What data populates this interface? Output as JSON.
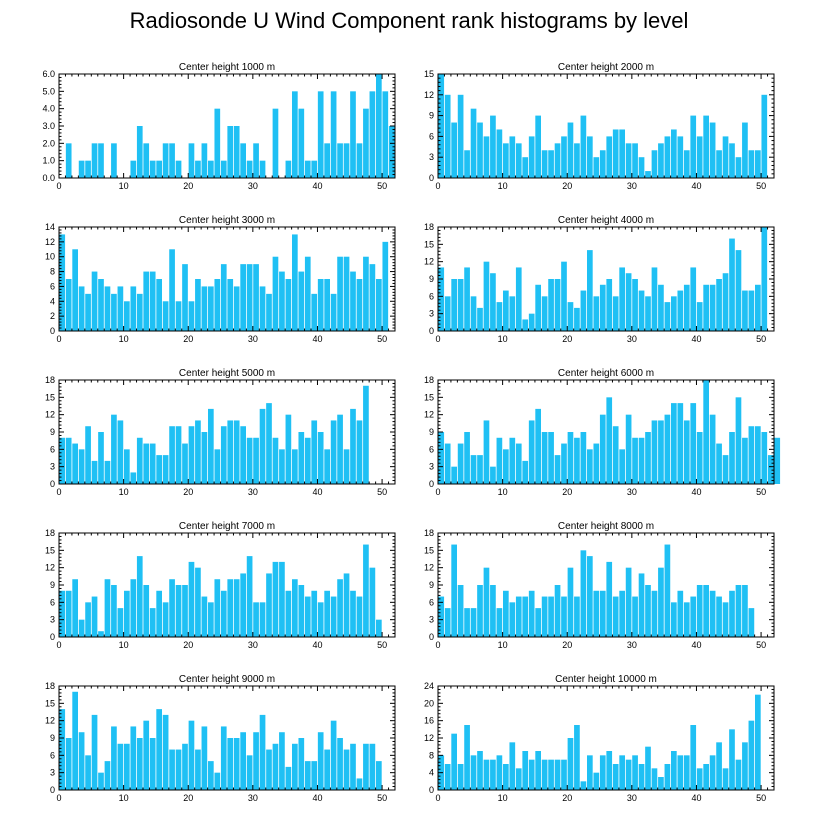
{
  "title": "Radiosonde U Wind Component rank histograms by level",
  "colors": {
    "bar": "#1fc0f4",
    "axis": "#000000"
  },
  "chart_data": [
    {
      "type": "bar",
      "title": "Center height 1000 m",
      "xlim": [
        0,
        52
      ],
      "ylim": [
        0,
        6
      ],
      "xticks": [
        0,
        10,
        20,
        30,
        40,
        50
      ],
      "yticks": [
        0,
        1,
        2,
        3,
        4,
        5,
        6
      ],
      "ytick_labels": [
        "0.0",
        "1.0",
        "2.0",
        "3.0",
        "4.0",
        "5.0",
        "6.0"
      ],
      "values": [
        0,
        2,
        0,
        1,
        1,
        2,
        2,
        0,
        2,
        0,
        0,
        1,
        3,
        2,
        1,
        1,
        2,
        2,
        1,
        0,
        2,
        1,
        2,
        1,
        4,
        1,
        3,
        3,
        2,
        1,
        2,
        1,
        0,
        4,
        0,
        1,
        5,
        4,
        1,
        1,
        5,
        2,
        5,
        2,
        2,
        5,
        2,
        4,
        5,
        6,
        5,
        3
      ]
    },
    {
      "type": "bar",
      "title": "Center height 2000 m",
      "xlim": [
        0,
        52
      ],
      "ylim": [
        0,
        15
      ],
      "xticks": [
        0,
        10,
        20,
        30,
        40,
        50
      ],
      "yticks": [
        0,
        3,
        6,
        9,
        12,
        15
      ],
      "ytick_labels": [
        "0",
        "3",
        "6",
        "9",
        "12",
        "15"
      ],
      "values": [
        15,
        12,
        8,
        12,
        4,
        10,
        8,
        6,
        9,
        7,
        5,
        6,
        5,
        3,
        6,
        9,
        4,
        4,
        5,
        6,
        8,
        5,
        9,
        6,
        3,
        4,
        6,
        7,
        7,
        5,
        5,
        3,
        1,
        4,
        5,
        6,
        7,
        6,
        4,
        9,
        6,
        9,
        8,
        4,
        6,
        5,
        3,
        8,
        4,
        4,
        12,
        0
      ]
    },
    {
      "type": "bar",
      "title": "Center height 3000 m",
      "xlim": [
        0,
        52
      ],
      "ylim": [
        0,
        14
      ],
      "xticks": [
        0,
        10,
        20,
        30,
        40,
        50
      ],
      "yticks": [
        0,
        2,
        4,
        6,
        8,
        10,
        12,
        14
      ],
      "ytick_labels": [
        "0",
        "2",
        "4",
        "6",
        "8",
        "10",
        "12",
        "14"
      ],
      "values": [
        13,
        7,
        11,
        6,
        5,
        8,
        7,
        6,
        5,
        6,
        4,
        6,
        5,
        8,
        8,
        7,
        4,
        11,
        4,
        9,
        4,
        7,
        6,
        6,
        7,
        9,
        7,
        6,
        9,
        9,
        9,
        6,
        5,
        10,
        8,
        7,
        13,
        8,
        10,
        5,
        7,
        7,
        5,
        10,
        10,
        8,
        7,
        10,
        9,
        7,
        12,
        0
      ]
    },
    {
      "type": "bar",
      "title": "Center height 4000 m",
      "xlim": [
        0,
        52
      ],
      "ylim": [
        0,
        18
      ],
      "xticks": [
        0,
        10,
        20,
        30,
        40,
        50
      ],
      "yticks": [
        0,
        3,
        6,
        9,
        12,
        15,
        18
      ],
      "ytick_labels": [
        "0",
        "3",
        "6",
        "9",
        "12",
        "15",
        "18"
      ],
      "values": [
        11,
        6,
        9,
        9,
        11,
        6,
        4,
        12,
        10,
        5,
        7,
        6,
        11,
        2,
        3,
        8,
        6,
        9,
        9,
        12,
        5,
        4,
        7,
        14,
        6,
        8,
        9,
        6,
        11,
        10,
        9,
        7,
        6,
        11,
        8,
        5,
        6,
        7,
        8,
        11,
        5,
        8,
        8,
        9,
        10,
        16,
        14,
        7,
        7,
        8,
        18,
        0
      ]
    },
    {
      "type": "bar",
      "title": "Center height 5000 m",
      "xlim": [
        0,
        52
      ],
      "ylim": [
        0,
        18
      ],
      "xticks": [
        0,
        10,
        20,
        30,
        40,
        50
      ],
      "yticks": [
        0,
        3,
        6,
        9,
        12,
        15,
        18
      ],
      "ytick_labels": [
        "0",
        "3",
        "6",
        "9",
        "12",
        "15",
        "18"
      ],
      "values": [
        8,
        8,
        7,
        6,
        10,
        4,
        9,
        4,
        12,
        11,
        6,
        2,
        8,
        7,
        7,
        5,
        5,
        10,
        10,
        7,
        10,
        11,
        9,
        13,
        6,
        10,
        11,
        11,
        10,
        8,
        8,
        13,
        14,
        8,
        6,
        12,
        6,
        9,
        8,
        11,
        9,
        6,
        11,
        12,
        6,
        13,
        11,
        17,
        0,
        0,
        0,
        0
      ]
    },
    {
      "type": "bar",
      "title": "Center height 6000 m",
      "xlim": [
        0,
        52
      ],
      "ylim": [
        0,
        18
      ],
      "xticks": [
        0,
        10,
        20,
        30,
        40,
        50
      ],
      "yticks": [
        0,
        3,
        6,
        9,
        12,
        15,
        18
      ],
      "ytick_labels": [
        "0",
        "3",
        "6",
        "9",
        "12",
        "15",
        "18"
      ],
      "values": [
        9,
        7,
        3,
        7,
        9,
        5,
        5,
        11,
        3,
        8,
        6,
        8,
        7,
        4,
        11,
        13,
        9,
        9,
        5,
        7,
        9,
        8,
        9,
        6,
        7,
        12,
        15,
        10,
        6,
        12,
        8,
        8,
        9,
        11,
        11,
        12,
        14,
        14,
        11,
        14,
        9,
        18,
        12,
        7,
        5,
        9,
        15,
        8,
        10,
        10,
        9,
        5,
        8,
        0
      ]
    },
    {
      "type": "bar",
      "title": "Center height 7000 m",
      "xlim": [
        0,
        52
      ],
      "ylim": [
        0,
        18
      ],
      "xticks": [
        0,
        10,
        20,
        30,
        40,
        50
      ],
      "yticks": [
        0,
        3,
        6,
        9,
        12,
        15,
        18
      ],
      "ytick_labels": [
        "0",
        "3",
        "6",
        "9",
        "12",
        "15",
        "18"
      ],
      "values": [
        8,
        8,
        10,
        3,
        6,
        7,
        1,
        10,
        9,
        5,
        8,
        10,
        14,
        9,
        5,
        8,
        6,
        10,
        9,
        9,
        13,
        12,
        7,
        6,
        10,
        8,
        10,
        10,
        11,
        14,
        6,
        6,
        11,
        13,
        13,
        8,
        10,
        9,
        7,
        8,
        6,
        8,
        7,
        10,
        11,
        8,
        7,
        16,
        12,
        3,
        0,
        0
      ]
    },
    {
      "type": "bar",
      "title": "Center height 8000 m",
      "xlim": [
        0,
        52
      ],
      "ylim": [
        0,
        18
      ],
      "xticks": [
        0,
        10,
        20,
        30,
        40,
        50
      ],
      "yticks": [
        0,
        3,
        6,
        9,
        12,
        15,
        18
      ],
      "ytick_labels": [
        "0",
        "3",
        "6",
        "9",
        "12",
        "15",
        "18"
      ],
      "values": [
        7,
        5,
        16,
        9,
        5,
        5,
        9,
        12,
        9,
        5,
        8,
        6,
        7,
        7,
        8,
        5,
        7,
        7,
        9,
        7,
        12,
        7,
        15,
        14,
        8,
        8,
        13,
        7,
        8,
        12,
        7,
        11,
        9,
        8,
        12,
        16,
        6,
        8,
        6,
        7,
        9,
        9,
        8,
        7,
        6,
        8,
        9,
        9,
        5,
        0,
        0,
        0
      ]
    },
    {
      "type": "bar",
      "title": "Center height 9000 m",
      "xlim": [
        0,
        52
      ],
      "ylim": [
        0,
        18
      ],
      "xticks": [
        0,
        10,
        20,
        30,
        40,
        50
      ],
      "yticks": [
        0,
        3,
        6,
        9,
        12,
        15,
        18
      ],
      "ytick_labels": [
        "0",
        "3",
        "6",
        "9",
        "12",
        "15",
        "18"
      ],
      "values": [
        14,
        9,
        17,
        10,
        6,
        13,
        3,
        5,
        11,
        8,
        8,
        11,
        9,
        12,
        9,
        14,
        13,
        7,
        7,
        8,
        12,
        7,
        11,
        5,
        3,
        11,
        9,
        9,
        10,
        6,
        10,
        13,
        7,
        8,
        10,
        4,
        8,
        9,
        5,
        5,
        10,
        7,
        12,
        9,
        7,
        8,
        2,
        8,
        8,
        5,
        0,
        0
      ]
    },
    {
      "type": "bar",
      "title": "Center height 10000 m",
      "xlim": [
        0,
        52
      ],
      "ylim": [
        0,
        24
      ],
      "xticks": [
        0,
        10,
        20,
        30,
        40,
        50
      ],
      "yticks": [
        0,
        4,
        8,
        12,
        16,
        20,
        24
      ],
      "ytick_labels": [
        "0",
        "4",
        "8",
        "12",
        "16",
        "20",
        "24"
      ],
      "values": [
        8,
        6,
        13,
        6,
        15,
        8,
        9,
        7,
        7,
        8,
        6,
        11,
        5,
        9,
        7,
        9,
        7,
        7,
        7,
        7,
        12,
        15,
        2,
        8,
        4,
        8,
        9,
        6,
        8,
        7,
        8,
        6,
        10,
        5,
        3,
        6,
        9,
        8,
        8,
        15,
        5,
        6,
        8,
        11,
        5,
        14,
        7,
        11,
        16,
        22,
        0,
        0
      ]
    }
  ]
}
